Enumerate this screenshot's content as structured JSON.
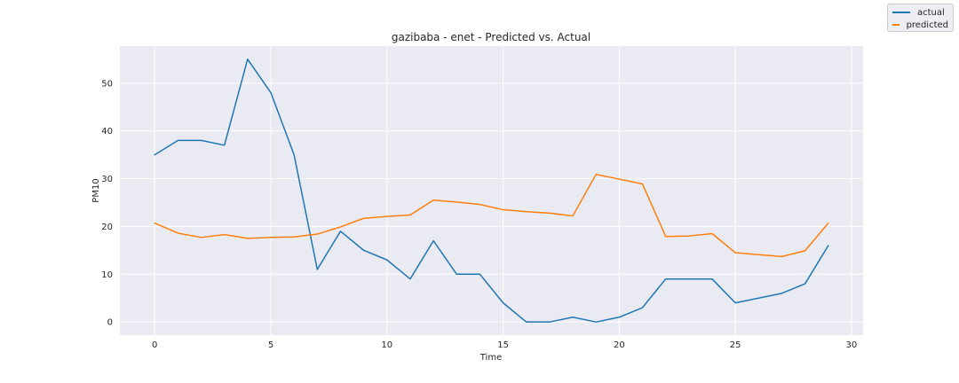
{
  "chart_data": {
    "type": "line",
    "title": "gazibaba - enet - Predicted vs. Actual",
    "xlabel": "Time",
    "ylabel": "PM10",
    "xlim": [
      -1.5,
      30.5
    ],
    "ylim": [
      -2.75,
      57.75
    ],
    "xticks": [
      0,
      5,
      10,
      15,
      20,
      25,
      30
    ],
    "yticks": [
      0,
      10,
      20,
      30,
      40,
      50
    ],
    "grid": true,
    "legend_position": "top-right",
    "x": [
      0,
      1,
      2,
      3,
      4,
      5,
      6,
      7,
      8,
      9,
      10,
      11,
      12,
      13,
      14,
      15,
      16,
      17,
      18,
      19,
      20,
      21,
      22,
      23,
      24,
      25,
      26,
      27,
      28,
      29
    ],
    "series": [
      {
        "name": "actual",
        "color": "#1f77b4",
        "values": [
          35,
          38,
          38,
          37,
          55,
          48,
          35,
          11,
          19,
          15,
          13,
          9,
          17,
          10,
          10,
          4,
          0,
          0,
          1,
          0,
          1,
          3,
          9,
          9,
          9,
          4,
          5,
          6,
          8,
          16
        ]
      },
      {
        "name": "predicted",
        "color": "#ff7f0e",
        "values": [
          20.7,
          18.6,
          17.7,
          18.3,
          17.5,
          17.7,
          17.8,
          18.4,
          19.9,
          21.7,
          22.1,
          22.4,
          25.5,
          25.1,
          24.6,
          23.5,
          23.1,
          22.8,
          22.2,
          30.9,
          29.9,
          28.9,
          17.9,
          18.0,
          18.5,
          14.5,
          14.1,
          13.7,
          14.9,
          20.7
        ]
      }
    ]
  }
}
